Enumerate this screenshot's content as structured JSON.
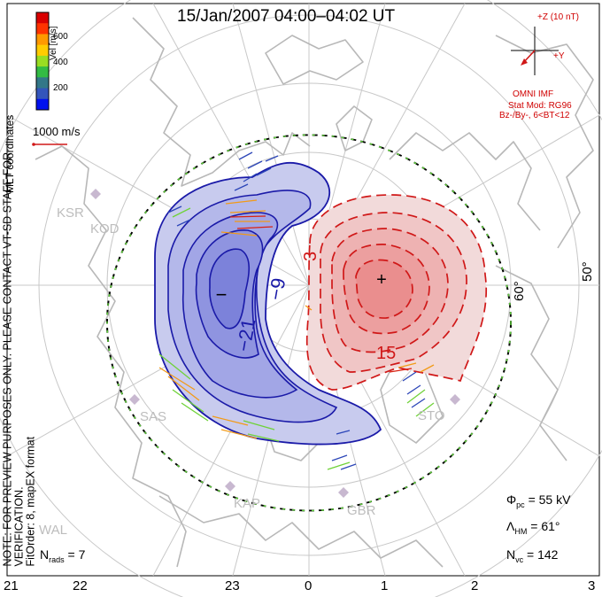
{
  "title": "15/Jan/2007 04:00–04:02 UT",
  "legend": {
    "label": "Vel [m/s]",
    "ticks": [
      "600",
      "400",
      "200"
    ],
    "colors": [
      "#d90000",
      "#ff3300",
      "#ff9900",
      "#ffcc00",
      "#99dd22",
      "#33bb44",
      "#337788",
      "#3355bb",
      "#0011ee"
    ]
  },
  "mlt_coordinates": "MLT coordinates",
  "note_line1": "NOTE: FOR PREVIEW PURPOSES ONLY. PLEASE CONTACT VT-SD STAFF FOR VERIFICATION.",
  "note_line2": "FitOrder: 8, mapEX format",
  "scale_vector": "1000 m/s",
  "imf": {
    "z_label": "+Z (10 nT)",
    "y_label": "+Y",
    "source": "OMNI IMF",
    "model": "Stat Mod: RG96",
    "condition": "Bz-/By-, 6<BT<12"
  },
  "lat_labels": [
    "60°",
    "50°"
  ],
  "contour_labels": {
    "neg1": "−9",
    "neg2": "−21",
    "pos1": "3",
    "pos2": "15"
  },
  "mlt_labels": [
    "21",
    "22",
    "23",
    "0",
    "1",
    "2",
    "3"
  ],
  "stations": [
    "KSR",
    "KOD",
    "SAS",
    "KAP",
    "GBR",
    "WAL",
    "STO"
  ],
  "stats": {
    "phi_symbol": "Φ",
    "phi_sub": "pc",
    "phi_value": "= 55 kV",
    "lambda_symbol": "Λ",
    "lambda_sub": "HM",
    "lambda_value": "= 61°",
    "nvc_symbol": "N",
    "nvc_sub": "vc",
    "nvc_value": "= 142",
    "nrads_symbol": "N",
    "nrads_sub": "rads",
    "nrads_value": "= 7"
  },
  "colors": {
    "negative_cell": "#1a1aa8",
    "positive_cell": "#d01818",
    "coastline": "#b8b8b8",
    "grid": "#c8c8c8"
  },
  "symbols": {
    "min": "−",
    "max": "+"
  }
}
